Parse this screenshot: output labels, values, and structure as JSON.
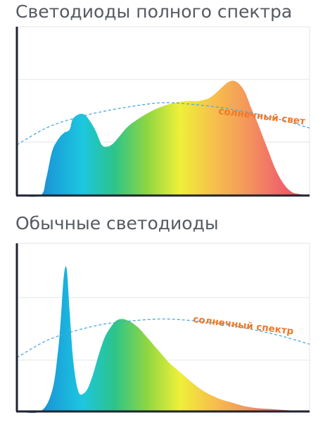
{
  "colors": {
    "axis": "#1f2330",
    "grid": "#e3e5ea",
    "sun_curve": "#4aa8e0",
    "sun_label": "#f0782a",
    "title": "#555a60",
    "spectrum": [
      "#4a4fa8",
      "#1a9cd8",
      "#1cc6e0",
      "#2cc48a",
      "#8fd642",
      "#eef03a",
      "#f6c24a",
      "#f49a5a",
      "#f06a6a",
      "#f04a5a"
    ]
  },
  "chart_data": [
    {
      "type": "area",
      "title": "Светодиоды полного спектра",
      "xlabel": "",
      "ylabel": "",
      "xlim": [
        0,
        100
      ],
      "ylim": [
        0,
        100
      ],
      "grid": true,
      "series": [
        {
          "x": [
            0,
            8,
            10,
            12,
            14,
            16,
            18,
            19,
            21,
            23,
            25,
            27,
            29,
            31,
            33,
            35,
            38,
            42,
            46,
            50,
            54,
            58,
            62,
            66,
            70,
            72,
            74,
            76,
            78,
            80,
            82,
            84,
            86,
            88,
            90,
            92,
            94,
            96,
            98,
            100
          ],
          "y": [
            0,
            0,
            10,
            26,
            33,
            37,
            39,
            45,
            48,
            48,
            44,
            38,
            30,
            29,
            31,
            35,
            41,
            46,
            50,
            53,
            55,
            56,
            56,
            58,
            64,
            67,
            68,
            66,
            61,
            52,
            44,
            35,
            26,
            17,
            10,
            5,
            2,
            1,
            0.5,
            0
          ]
        },
        {
          "name": "солнечный свет",
          "x": [
            0,
            10,
            20,
            30,
            40,
            50,
            60,
            70,
            80,
            90,
            100
          ],
          "y": [
            30,
            40,
            46,
            50,
            53,
            55,
            54,
            52,
            49,
            45,
            40
          ]
        }
      ]
    },
    {
      "type": "area",
      "title": "Обычные светодиоды",
      "xlabel": "",
      "ylabel": "",
      "xlim": [
        0,
        100
      ],
      "ylim": [
        0,
        100
      ],
      "grid": true,
      "series": [
        {
          "x": [
            0,
            8,
            12,
            14,
            15,
            16,
            17,
            18,
            19,
            20,
            21,
            22,
            24,
            26,
            28,
            30,
            32,
            34,
            36,
            38,
            40,
            42,
            44,
            46,
            48,
            50,
            52,
            54,
            56,
            58,
            60,
            63,
            66,
            70,
            74,
            78,
            82,
            86,
            90,
            95,
            100
          ],
          "y": [
            0,
            0,
            12,
            35,
            55,
            80,
            85,
            60,
            35,
            20,
            12,
            10,
            13,
            22,
            34,
            44,
            50,
            54,
            55,
            54,
            52,
            49,
            45,
            41,
            37,
            33,
            29,
            26,
            23,
            20,
            17,
            13,
            10,
            7,
            5,
            3,
            2,
            1.5,
            1,
            0.5,
            0
          ]
        },
        {
          "name": "солнечный спектр",
          "x": [
            0,
            10,
            20,
            30,
            40,
            50,
            60,
            70,
            80,
            90,
            100
          ],
          "y": [
            32,
            42,
            48,
            52,
            54,
            55,
            54,
            52,
            49,
            45,
            40
          ]
        }
      ]
    }
  ]
}
